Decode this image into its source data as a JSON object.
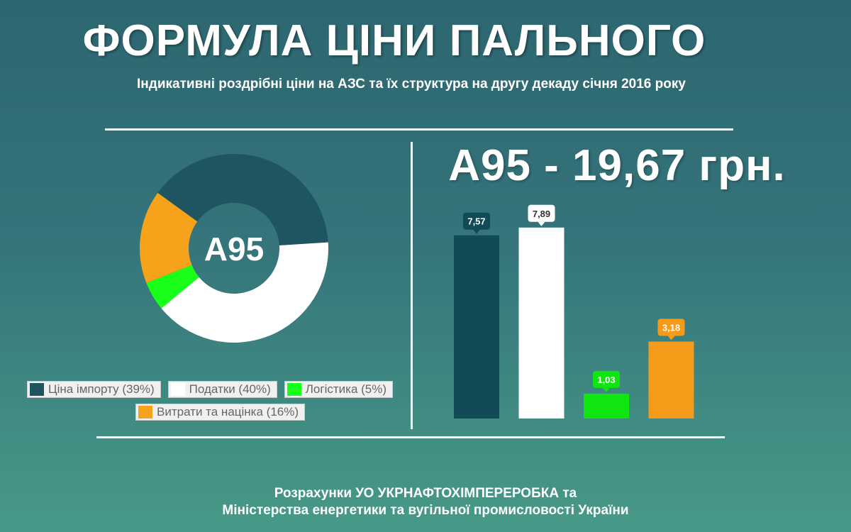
{
  "header": {
    "title": "ФОРМУЛА ЦІНИ ПАЛЬНОГО",
    "subtitle": "Індикативні роздрібні ціни на АЗС  та їх структура на другу декаду січня 2016 року"
  },
  "price_heading": "А95 - 19,67 грн.",
  "footer": {
    "line1": "Розрахунки УО УКРНАФТОХІМПЕРЕРОБКА та",
    "line2": "Міністерства енергетики та вугільної промисловості України"
  },
  "chart_data": [
    {
      "type": "pie",
      "variant": "donut",
      "center_label": "А95",
      "categories": [
        "Ціна імпорту",
        "Податки",
        "Логістика",
        "Витрати та націнка"
      ],
      "values": [
        39,
        40,
        5,
        16
      ],
      "legend_labels": [
        "Ціна імпорту (39%)",
        "Податки (40%)",
        "Логістика (5%)",
        "Витрати та націнка (16%)"
      ],
      "colors": [
        "#1e5560",
        "#ffffff",
        "#1aff1a",
        "#f7a21b"
      ],
      "legend_position": "bottom"
    },
    {
      "type": "bar",
      "categories": [
        "Ціна імпорту",
        "Податки",
        "Логістика",
        "Витрати та націнка"
      ],
      "values": [
        7.57,
        7.89,
        1.03,
        3.18
      ],
      "value_labels": [
        "7,57",
        "7,89",
        "1,03",
        "3,18"
      ],
      "colors": [
        "#124a55",
        "#ffffff",
        "#0fe60f",
        "#f59a19"
      ],
      "label_text_colors": [
        "#ffffff",
        "#333333",
        "#ffffff",
        "#ffffff"
      ],
      "ylim": [
        0,
        8.5
      ],
      "grid": false
    }
  ]
}
